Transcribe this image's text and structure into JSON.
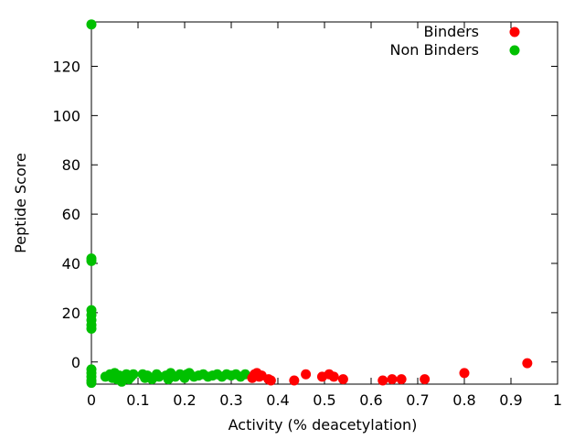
{
  "chart_data": {
    "type": "scatter",
    "title": "",
    "xlabel": "Activity (% deacetylation)",
    "ylabel": "Peptide Score",
    "xlim": [
      0,
      1
    ],
    "ylim": [
      -9,
      138
    ],
    "xticks": [
      0,
      0.1,
      0.2,
      0.3,
      0.4,
      0.5,
      0.6,
      0.7,
      0.8,
      0.9,
      1
    ],
    "xtick_labels": [
      "0",
      "0.1",
      "0.2",
      "0.3",
      "0.4",
      "0.5",
      "0.6",
      "0.7",
      "0.8",
      "0.9",
      "1"
    ],
    "yticks": [
      0,
      20,
      40,
      60,
      80,
      100,
      120
    ],
    "ytick_labels": [
      "0",
      "20",
      "40",
      "60",
      "80",
      "100",
      "120"
    ],
    "grid": false,
    "legend_position": "top-right",
    "series": [
      {
        "name": "Binders",
        "color": "#ff0000",
        "points": [
          [
            0.345,
            -6.5
          ],
          [
            0.35,
            -5
          ],
          [
            0.355,
            -4.5
          ],
          [
            0.36,
            -6
          ],
          [
            0.365,
            -5.5
          ],
          [
            0.38,
            -7
          ],
          [
            0.385,
            -7.5
          ],
          [
            0.435,
            -7.5
          ],
          [
            0.46,
            -5
          ],
          [
            0.495,
            -6
          ],
          [
            0.51,
            -5
          ],
          [
            0.52,
            -6
          ],
          [
            0.54,
            -7
          ],
          [
            0.625,
            -7.5
          ],
          [
            0.645,
            -7
          ],
          [
            0.665,
            -7
          ],
          [
            0.715,
            -7
          ],
          [
            0.8,
            -4.5
          ],
          [
            0.935,
            -0.5
          ]
        ]
      },
      {
        "name": "Non Binders",
        "color": "#00c000",
        "points": [
          [
            0,
            137
          ],
          [
            0,
            42
          ],
          [
            0,
            41
          ],
          [
            0,
            21
          ],
          [
            0,
            19
          ],
          [
            0,
            17
          ],
          [
            0,
            15
          ],
          [
            0,
            13.5
          ],
          [
            0,
            -3
          ],
          [
            0,
            -4.5
          ],
          [
            0,
            -6
          ],
          [
            0,
            -7.5
          ],
          [
            0,
            -8.5
          ],
          [
            0.03,
            -6
          ],
          [
            0.04,
            -5
          ],
          [
            0.045,
            -6.5
          ],
          [
            0.05,
            -4.5
          ],
          [
            0.055,
            -7
          ],
          [
            0.06,
            -5.5
          ],
          [
            0.065,
            -8
          ],
          [
            0.07,
            -6.5
          ],
          [
            0.075,
            -5
          ],
          [
            0.08,
            -7
          ],
          [
            0.085,
            -6
          ],
          [
            0.09,
            -5
          ],
          [
            0.11,
            -5
          ],
          [
            0.115,
            -6.5
          ],
          [
            0.12,
            -5.5
          ],
          [
            0.13,
            -7
          ],
          [
            0.14,
            -5
          ],
          [
            0.145,
            -6
          ],
          [
            0.16,
            -5.5
          ],
          [
            0.165,
            -7
          ],
          [
            0.17,
            -4.5
          ],
          [
            0.18,
            -6
          ],
          [
            0.19,
            -5
          ],
          [
            0.2,
            -6.5
          ],
          [
            0.205,
            -5
          ],
          [
            0.21,
            -4.5
          ],
          [
            0.22,
            -6
          ],
          [
            0.23,
            -5.5
          ],
          [
            0.24,
            -5
          ],
          [
            0.25,
            -6
          ],
          [
            0.26,
            -5.5
          ],
          [
            0.27,
            -5
          ],
          [
            0.28,
            -6
          ],
          [
            0.29,
            -5
          ],
          [
            0.3,
            -5.5
          ],
          [
            0.31,
            -5
          ],
          [
            0.32,
            -6
          ],
          [
            0.33,
            -5
          ]
        ]
      }
    ]
  }
}
